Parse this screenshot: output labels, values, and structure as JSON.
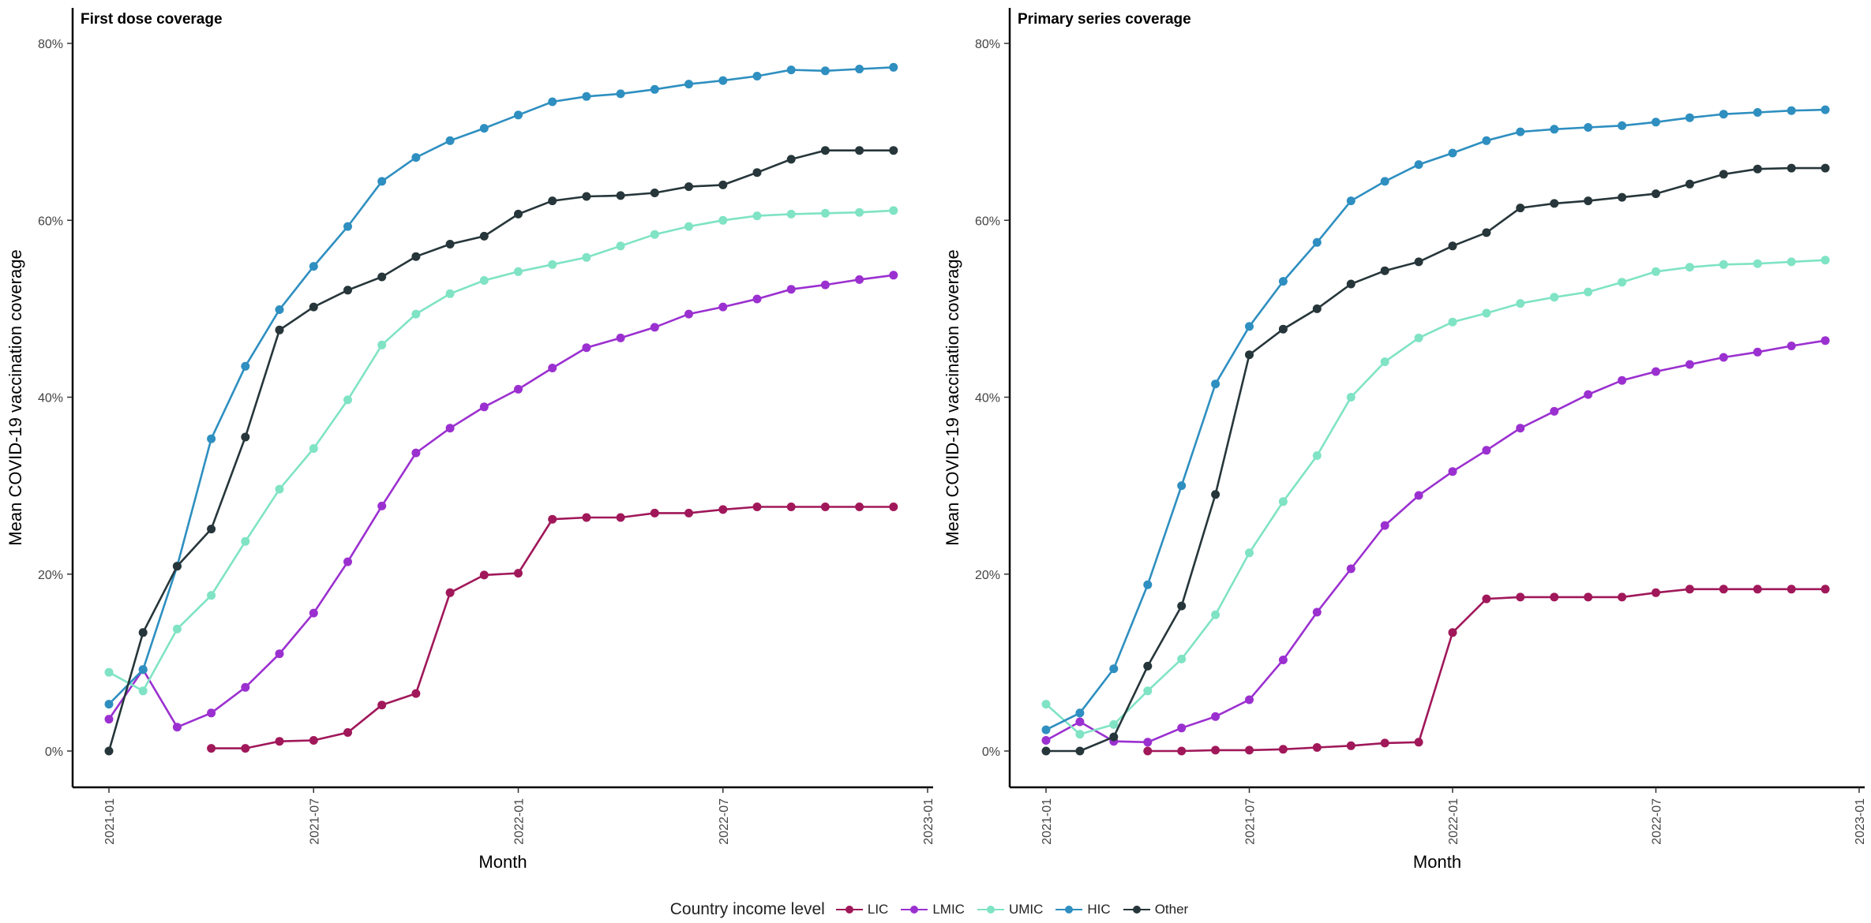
{
  "chart_data": [
    {
      "type": "line",
      "title": "First dose coverage",
      "xlabel": "Month",
      "ylabel": "Mean COVID-19 vaccination coverage",
      "x_ticks": [
        "2021-01",
        "2021-07",
        "2022-01",
        "2022-07",
        "2023-01"
      ],
      "y_ticks": [
        "0%",
        "20%",
        "40%",
        "60%",
        "80%"
      ],
      "ylim": [
        0,
        80
      ],
      "xlim": [
        "2021-01",
        "2023-01"
      ],
      "grid": false,
      "series": [
        {
          "name": "LIC",
          "color": "#a0185a",
          "x": [
            "2021-04",
            "2021-05",
            "2021-06",
            "2021-07",
            "2021-08",
            "2021-09",
            "2021-10",
            "2021-11",
            "2021-12",
            "2022-01",
            "2022-02",
            "2022-03",
            "2022-04",
            "2022-05",
            "2022-06",
            "2022-07",
            "2022-08",
            "2022-09",
            "2022-10",
            "2022-11",
            "2022-12"
          ],
          "values": [
            0.3,
            0.3,
            1.1,
            1.2,
            2.1,
            5.2,
            6.5,
            17.9,
            19.9,
            20.1,
            26.2,
            26.4,
            26.4,
            26.9,
            26.9,
            27.3,
            27.6,
            27.6,
            27.6,
            27.6,
            27.6
          ]
        },
        {
          "name": "LMIC",
          "color": "#9b30d0",
          "x": [
            "2021-01",
            "2021-02",
            "2021-03",
            "2021-04",
            "2021-05",
            "2021-06",
            "2021-07",
            "2021-08",
            "2021-09",
            "2021-10",
            "2021-11",
            "2021-12",
            "2022-01",
            "2022-02",
            "2022-03",
            "2022-04",
            "2022-05",
            "2022-06",
            "2022-07",
            "2022-08",
            "2022-09",
            "2022-10",
            "2022-11",
            "2022-12"
          ],
          "values": [
            3.6,
            9.2,
            2.7,
            4.3,
            7.2,
            11.0,
            15.6,
            21.4,
            27.7,
            33.7,
            36.5,
            38.9,
            40.9,
            43.3,
            45.6,
            46.7,
            47.9,
            49.4,
            50.2,
            51.1,
            52.2,
            52.7,
            53.3,
            53.8
          ]
        },
        {
          "name": "UMIC",
          "color": "#7fe3c4",
          "x": [
            "2021-01",
            "2021-02",
            "2021-03",
            "2021-04",
            "2021-05",
            "2021-06",
            "2021-07",
            "2021-08",
            "2021-09",
            "2021-10",
            "2021-11",
            "2021-12",
            "2022-01",
            "2022-02",
            "2022-03",
            "2022-04",
            "2022-05",
            "2022-06",
            "2022-07",
            "2022-08",
            "2022-09",
            "2022-10",
            "2022-11",
            "2022-12"
          ],
          "values": [
            8.9,
            6.8,
            13.8,
            17.6,
            23.7,
            29.6,
            34.2,
            39.7,
            45.9,
            49.4,
            51.7,
            53.2,
            54.2,
            55.0,
            55.8,
            57.1,
            58.4,
            59.3,
            60.0,
            60.5,
            60.7,
            60.8,
            60.9,
            61.1
          ]
        },
        {
          "name": "HIC",
          "color": "#2e8fc0",
          "x": [
            "2021-01",
            "2021-02",
            "2021-03",
            "2021-04",
            "2021-05",
            "2021-06",
            "2021-07",
            "2021-08",
            "2021-09",
            "2021-10",
            "2021-11",
            "2021-12",
            "2022-01",
            "2022-02",
            "2022-03",
            "2022-04",
            "2022-05",
            "2022-06",
            "2022-07",
            "2022-08",
            "2022-09",
            "2022-10",
            "2022-11",
            "2022-12"
          ],
          "values": [
            5.3,
            9.2,
            20.9,
            35.3,
            43.5,
            49.9,
            54.8,
            59.3,
            64.4,
            67.1,
            69.0,
            70.4,
            71.9,
            73.4,
            74.0,
            74.3,
            74.8,
            75.4,
            75.8,
            76.3,
            77.0,
            76.9,
            77.1,
            77.3
          ]
        },
        {
          "name": "Other",
          "color": "#26363a",
          "x": [
            "2021-01",
            "2021-02",
            "2021-03",
            "2021-04",
            "2021-05",
            "2021-06",
            "2021-07",
            "2021-08",
            "2021-09",
            "2021-10",
            "2021-11",
            "2021-12",
            "2022-01",
            "2022-02",
            "2022-03",
            "2022-04",
            "2022-05",
            "2022-06",
            "2022-07",
            "2022-08",
            "2022-09",
            "2022-10",
            "2022-11",
            "2022-12"
          ],
          "values": [
            0.0,
            13.4,
            20.9,
            25.1,
            35.5,
            47.6,
            50.2,
            52.1,
            53.6,
            55.9,
            57.3,
            58.2,
            60.7,
            62.2,
            62.7,
            62.8,
            63.1,
            63.8,
            64.0,
            65.4,
            66.9,
            67.9,
            67.9,
            67.9
          ]
        }
      ]
    },
    {
      "type": "line",
      "title": "Primary series coverage",
      "xlabel": "Month",
      "ylabel": "Mean COVID-19 vaccination coverage",
      "x_ticks": [
        "2021-01",
        "2021-07",
        "2022-01",
        "2022-07",
        "2023-01"
      ],
      "y_ticks": [
        "0%",
        "20%",
        "40%",
        "60%",
        "80%"
      ],
      "ylim": [
        0,
        80
      ],
      "xlim": [
        "2021-01",
        "2023-01"
      ],
      "grid": false,
      "series": [
        {
          "name": "LIC",
          "color": "#a0185a",
          "x": [
            "2021-04",
            "2021-05",
            "2021-06",
            "2021-07",
            "2021-08",
            "2021-09",
            "2021-10",
            "2021-11",
            "2021-12",
            "2022-01",
            "2022-02",
            "2022-03",
            "2022-04",
            "2022-05",
            "2022-06",
            "2022-07",
            "2022-08",
            "2022-09",
            "2022-10",
            "2022-11",
            "2022-12"
          ],
          "values": [
            0.0,
            0.0,
            0.1,
            0.1,
            0.2,
            0.4,
            0.6,
            0.9,
            1.0,
            13.4,
            17.2,
            17.4,
            17.4,
            17.4,
            17.4,
            17.9,
            18.3,
            18.3,
            18.3,
            18.3,
            18.3
          ]
        },
        {
          "name": "LMIC",
          "color": "#9b30d0",
          "x": [
            "2021-01",
            "2021-02",
            "2021-03",
            "2021-04",
            "2021-05",
            "2021-06",
            "2021-07",
            "2021-08",
            "2021-09",
            "2021-10",
            "2021-11",
            "2021-12",
            "2022-01",
            "2022-02",
            "2022-03",
            "2022-04",
            "2022-05",
            "2022-06",
            "2022-07",
            "2022-08",
            "2022-09",
            "2022-10",
            "2022-11",
            "2022-12"
          ],
          "values": [
            1.2,
            3.3,
            1.1,
            1.0,
            2.6,
            3.9,
            5.8,
            10.3,
            15.7,
            20.6,
            25.5,
            28.9,
            31.6,
            34.0,
            36.5,
            38.4,
            40.3,
            41.9,
            42.9,
            43.7,
            44.5,
            45.1,
            45.8,
            46.4
          ]
        },
        {
          "name": "UMIC",
          "color": "#7fe3c4",
          "x": [
            "2021-01",
            "2021-02",
            "2021-03",
            "2021-04",
            "2021-05",
            "2021-06",
            "2021-07",
            "2021-08",
            "2021-09",
            "2021-10",
            "2021-11",
            "2021-12",
            "2022-01",
            "2022-02",
            "2022-03",
            "2022-04",
            "2022-05",
            "2022-06",
            "2022-07",
            "2022-08",
            "2022-09",
            "2022-10",
            "2022-11",
            "2022-12"
          ],
          "values": [
            5.3,
            1.9,
            3.0,
            6.8,
            10.4,
            15.4,
            22.4,
            28.2,
            33.4,
            40.0,
            44.0,
            46.7,
            48.5,
            49.5,
            50.6,
            51.3,
            51.9,
            53.0,
            54.2,
            54.7,
            55.0,
            55.1,
            55.3,
            55.5
          ]
        },
        {
          "name": "HIC",
          "color": "#2e8fc0",
          "x": [
            "2021-01",
            "2021-02",
            "2021-03",
            "2021-04",
            "2021-05",
            "2021-06",
            "2021-07",
            "2021-08",
            "2021-09",
            "2021-10",
            "2021-11",
            "2021-12",
            "2022-01",
            "2022-02",
            "2022-03",
            "2022-04",
            "2022-05",
            "2022-06",
            "2022-07",
            "2022-08",
            "2022-09",
            "2022-10",
            "2022-11",
            "2022-12"
          ],
          "values": [
            2.4,
            4.3,
            9.3,
            18.8,
            30.0,
            41.5,
            48.0,
            53.1,
            57.5,
            62.2,
            64.4,
            66.3,
            67.6,
            69.0,
            70.0,
            70.3,
            70.5,
            70.7,
            71.1,
            71.6,
            72.0,
            72.2,
            72.4,
            72.5
          ]
        },
        {
          "name": "Other",
          "color": "#26363a",
          "x": [
            "2021-01",
            "2021-02",
            "2021-03",
            "2021-04",
            "2021-05",
            "2021-06",
            "2021-07",
            "2021-08",
            "2021-09",
            "2021-10",
            "2021-11",
            "2021-12",
            "2022-01",
            "2022-02",
            "2022-03",
            "2022-04",
            "2022-05",
            "2022-06",
            "2022-07",
            "2022-08",
            "2022-09",
            "2022-10",
            "2022-11",
            "2022-12"
          ],
          "values": [
            0.0,
            0.0,
            1.6,
            9.6,
            16.4,
            29.0,
            44.8,
            47.7,
            50.0,
            52.8,
            54.3,
            55.3,
            57.1,
            58.6,
            61.4,
            61.9,
            62.2,
            62.6,
            63.0,
            64.1,
            65.2,
            65.8,
            65.9,
            65.9
          ]
        }
      ]
    }
  ],
  "legend": {
    "title": "Country income level",
    "items": [
      {
        "name": "LIC",
        "color": "#a0185a"
      },
      {
        "name": "LMIC",
        "color": "#9b30d0"
      },
      {
        "name": "UMIC",
        "color": "#7fe3c4"
      },
      {
        "name": "HIC",
        "color": "#2e8fc0"
      },
      {
        "name": "Other",
        "color": "#26363a"
      }
    ],
    "placement": "bottom"
  }
}
